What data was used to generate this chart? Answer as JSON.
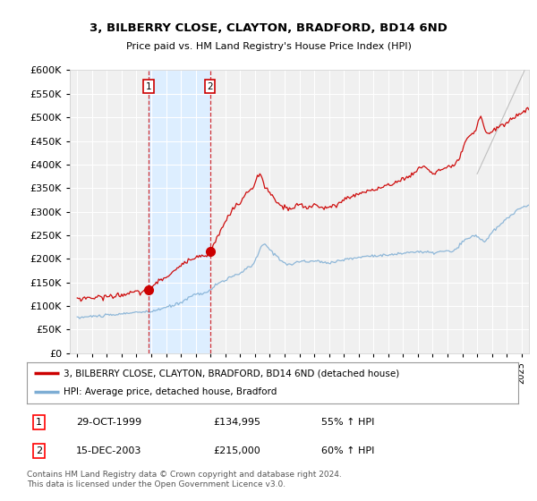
{
  "title": "3, BILBERRY CLOSE, CLAYTON, BRADFORD, BD14 6ND",
  "subtitle": "Price paid vs. HM Land Registry's House Price Index (HPI)",
  "footer": "Contains HM Land Registry data © Crown copyright and database right 2024.\nThis data is licensed under the Open Government Licence v3.0.",
  "legend_line1": "3, BILBERRY CLOSE, CLAYTON, BRADFORD, BD14 6ND (detached house)",
  "legend_line2": "HPI: Average price, detached house, Bradford",
  "sale1_date": "29-OCT-1999",
  "sale1_price": 134995,
  "sale1_pct": "55% ↑ HPI",
  "sale2_date": "15-DEC-2003",
  "sale2_price": 215000,
  "sale2_pct": "60% ↑ HPI",
  "sale1_x": 1999.83,
  "sale2_x": 2003.96,
  "ylim": [
    0,
    600000
  ],
  "xlim": [
    1994.5,
    2025.5
  ],
  "yticks": [
    0,
    50000,
    100000,
    150000,
    200000,
    250000,
    300000,
    350000,
    400000,
    450000,
    500000,
    550000,
    600000
  ],
  "red_color": "#cc0000",
  "blue_color": "#7dadd4",
  "shade_color": "#ddeeff",
  "background_color": "#f0f0f0",
  "grid_color": "#ffffff",
  "plot_bg": "#f0f0f0"
}
